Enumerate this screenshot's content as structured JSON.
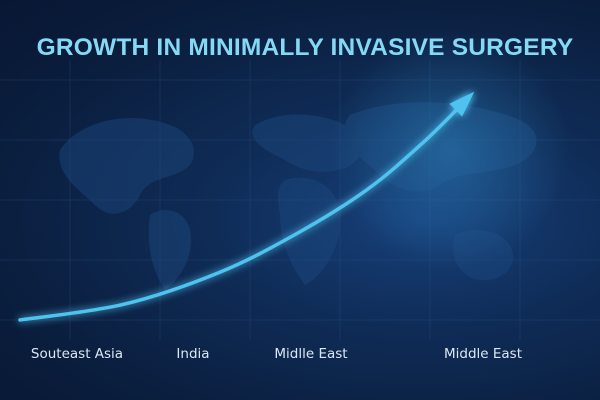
{
  "title": "GROWTH IN MINIMALLY INVASIVE SURGERY",
  "colors": {
    "background": "#0a1d3c",
    "curve": "#4fc3ef",
    "title": "#86d9f5",
    "labels": "#dbe7f4"
  },
  "chart_data": {
    "type": "line",
    "title": "GROWTH IN MINIMALLY INVASIVE SURGERY",
    "xlabel": "",
    "ylabel": "",
    "categories": [
      "Souteast Asia",
      "India",
      "Midlle East",
      "Middle East"
    ],
    "grid": true,
    "legend": "none",
    "x": [
      0,
      0.23,
      0.44,
      0.61,
      0.77,
      0.9,
      1.0
    ],
    "y": [
      0,
      0.07,
      0.21,
      0.38,
      0.58,
      0.8,
      1.0
    ],
    "arrow_at_end": true,
    "background_icon": "world-map"
  }
}
